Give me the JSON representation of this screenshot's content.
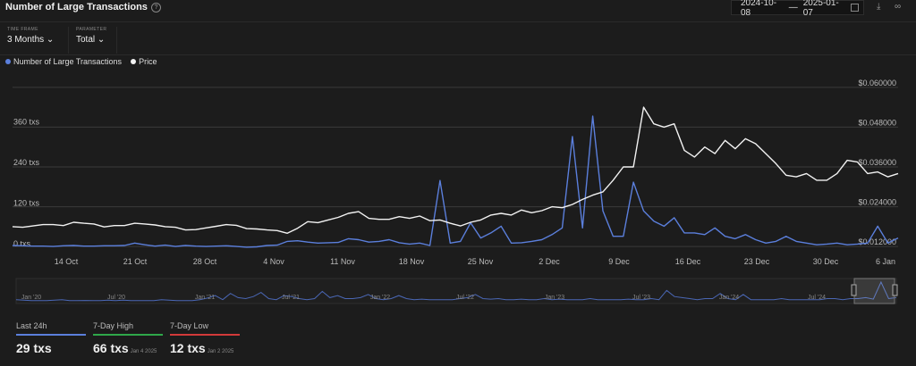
{
  "header": {
    "title": "Number of Large Transactions",
    "date_start": "2024-10-08",
    "date_sep": "—",
    "date_end": "2025-01-07"
  },
  "controls": {
    "timeframe_label": "TIME FRAME",
    "timeframe_value": "3 Months",
    "parameter_label": "PARAMETER",
    "parameter_value": "Total"
  },
  "legend": {
    "series1": "Number of Large Transactions",
    "series2": "Price"
  },
  "colors": {
    "txs": "#5b7fdc",
    "price": "#f2f2f2",
    "high": "#2fa84a",
    "low": "#d23a3a",
    "background": "#1c1c1c"
  },
  "chart_data": {
    "type": "line",
    "title": "Number of Large Transactions",
    "x_labels": [
      "14 Oct",
      "21 Oct",
      "28 Oct",
      "4 Nov",
      "11 Nov",
      "18 Nov",
      "25 Nov",
      "2 Dec",
      "9 Dec",
      "16 Dec",
      "23 Dec",
      "30 Dec",
      "6 Jan"
    ],
    "y_left_ticks": [
      "0 txs",
      "120 txs",
      "240 txs",
      "360 txs"
    ],
    "y_left_range": [
      0,
      480
    ],
    "y_right_ticks": [
      "$0.012000",
      "$0.024000",
      "$0.036000",
      "$0.048000",
      "$0.060000"
    ],
    "y_right_range": [
      0.0115,
      0.0605
    ],
    "series": [
      {
        "name": "Number of Large Transactions",
        "axis": "left",
        "values": [
          8,
          7,
          6,
          6,
          5,
          7,
          8,
          6,
          6,
          7,
          7,
          8,
          15,
          10,
          6,
          9,
          5,
          8,
          6,
          5,
          6,
          7,
          5,
          3,
          4,
          8,
          9,
          20,
          22,
          18,
          15,
          16,
          17,
          28,
          25,
          18,
          20,
          25,
          16,
          12,
          15,
          8,
          200,
          15,
          20,
          75,
          30,
          45,
          65,
          15,
          16,
          20,
          25,
          40,
          60,
          330,
          60,
          390,
          110,
          35,
          35,
          195,
          110,
          80,
          65,
          90,
          45,
          45,
          40,
          60,
          35,
          28,
          40,
          25,
          15,
          20,
          35,
          20,
          15,
          10,
          12,
          15,
          10,
          12,
          15,
          65,
          15,
          30
        ]
      },
      {
        "name": "Price",
        "axis": "right",
        "values": [
          0.018,
          0.0178,
          0.0182,
          0.0186,
          0.0186,
          0.0183,
          0.0193,
          0.019,
          0.0188,
          0.0179,
          0.0183,
          0.0183,
          0.019,
          0.0188,
          0.0185,
          0.018,
          0.0178,
          0.017,
          0.0171,
          0.0176,
          0.0181,
          0.0186,
          0.0184,
          0.0174,
          0.0173,
          0.017,
          0.0168,
          0.016,
          0.0175,
          0.0195,
          0.0192,
          0.02,
          0.0208,
          0.022,
          0.0225,
          0.0205,
          0.0202,
          0.0202,
          0.021,
          0.0205,
          0.0212,
          0.0198,
          0.02,
          0.019,
          0.0182,
          0.0193,
          0.02,
          0.0215,
          0.022,
          0.0215,
          0.023,
          0.0222,
          0.0228,
          0.024,
          0.0237,
          0.0247,
          0.0262,
          0.0275,
          0.0285,
          0.032,
          0.036,
          0.036,
          0.054,
          0.049,
          0.048,
          0.049,
          0.041,
          0.039,
          0.042,
          0.04,
          0.044,
          0.0415,
          0.0445,
          0.043,
          0.04,
          0.037,
          0.0335,
          0.033,
          0.034,
          0.032,
          0.032,
          0.034,
          0.038,
          0.0375,
          0.034,
          0.0345,
          0.033,
          0.034
        ]
      }
    ]
  },
  "navigator": {
    "labels": [
      "Jan '20",
      "Jul '20",
      "Jan '21",
      "Jul '21",
      "Jan '22",
      "Jul '22",
      "Jan '23",
      "Jul '23",
      "Jan '24",
      "Jul '24"
    ],
    "values": [
      0.2,
      0.15,
      0.1,
      0.1,
      0.1,
      0.15,
      0.2,
      0.1,
      0.1,
      0.12,
      0.1,
      0.1,
      0.15,
      0.1,
      0.15,
      0.1,
      0.1,
      0.1,
      0.1,
      0.2,
      0.15,
      0.1,
      0.1,
      0.1,
      0.2,
      0.35,
      0.6,
      0.2,
      0.8,
      0.4,
      0.3,
      0.5,
      0.9,
      0.3,
      0.2,
      0.6,
      0.5,
      0.3,
      0.2,
      0.3,
      1.0,
      0.4,
      0.6,
      0.3,
      0.3,
      0.4,
      0.7,
      0.3,
      0.2,
      0.3,
      0.6,
      0.3,
      0.2,
      0.25,
      0.2,
      0.2,
      0.2,
      0.2,
      0.3,
      0.4,
      0.7,
      0.3,
      0.25,
      0.3,
      0.2,
      0.2,
      0.25,
      0.2,
      0.2,
      0.3,
      0.2,
      0.25,
      0.2,
      0.2,
      0.2,
      0.3,
      0.2,
      0.2,
      0.2,
      0.2,
      0.25,
      0.2,
      0.2,
      0.3,
      0.2,
      1.1,
      0.5,
      0.4,
      0.3,
      0.2,
      0.3,
      0.3,
      0.8,
      0.3,
      0.2,
      0.7,
      0.2,
      0.2,
      0.2,
      0.2,
      0.3,
      0.2,
      0.2,
      0.2,
      0.2,
      0.2,
      0.3,
      0.3,
      0.2,
      0.3,
      0.3,
      0.4,
      0.25,
      1.9,
      0.3,
      0.4
    ]
  },
  "stats": [
    {
      "label": "Last 24h",
      "value": "29 txs",
      "date": ""
    },
    {
      "label": "7-Day High",
      "value": "66 txs",
      "date": "Jan 4 2025"
    },
    {
      "label": "7-Day Low",
      "value": "12 txs",
      "date": "Jan 2 2025"
    }
  ]
}
